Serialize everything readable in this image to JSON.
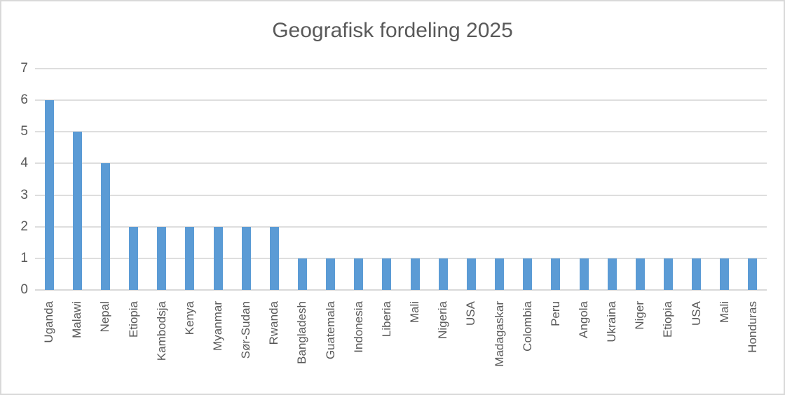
{
  "chart_data": {
    "type": "bar",
    "title": "Geografisk fordeling 2025",
    "categories": [
      "Uganda",
      "Malawi",
      "Nepal",
      "Etiopia",
      "Kambodsja",
      "Kenya",
      "Myanmar",
      "Sør-Sudan",
      "Rwanda",
      "Bangladesh",
      "Guatemala",
      "Indonesia",
      "Liberia",
      "Mali",
      "Nigeria",
      "USA",
      "Madagaskar",
      "Colombia",
      "Peru",
      "Angola",
      "Ukraina",
      "Niger",
      "Etiopia",
      "USA",
      "Mali",
      "Honduras"
    ],
    "values": [
      6,
      5,
      4,
      2,
      2,
      2,
      2,
      2,
      2,
      1,
      1,
      1,
      1,
      1,
      1,
      1,
      1,
      1,
      1,
      1,
      1,
      1,
      1,
      1,
      1,
      1
    ],
    "xlabel": "",
    "ylabel": "",
    "ylim": [
      0,
      7
    ],
    "yticks": [
      0,
      1,
      2,
      3,
      4,
      5,
      6,
      7
    ],
    "grid": true,
    "legend": false,
    "colors": {
      "bar": "#5B9BD5",
      "gridline": "#DEDEDE",
      "axis_line": "#D9D9D9",
      "text": "#595959",
      "chart_border": "#D9D9D9",
      "background": "#FFFFFF"
    }
  }
}
